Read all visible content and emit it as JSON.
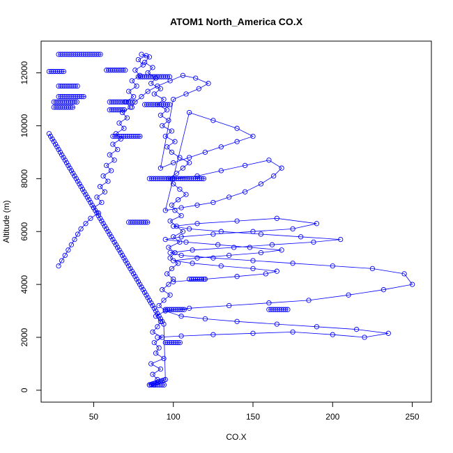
{
  "chart_data": {
    "type": "scatter",
    "title": "ATOM1 North_America CO.X",
    "xlabel": "CO.X",
    "ylabel": "Altitude (m)",
    "xlim": [
      17,
      262
    ],
    "ylim": [
      -450,
      13200
    ],
    "xticks": [
      50,
      100,
      150,
      200,
      250
    ],
    "yticks": [
      0,
      2000,
      4000,
      6000,
      8000,
      10000,
      12000
    ],
    "grid": false,
    "legend": "none",
    "colors": {
      "series": "#0000ff",
      "frame": "#000000",
      "background": "#ffffff"
    },
    "series": [
      {
        "style": "points-and-lines",
        "values_x": [
          88,
          90,
          87,
          92,
          86,
          94,
          89,
          91,
          88,
          93,
          87,
          90,
          92,
          89,
          95,
          91,
          94,
          98,
          93,
          97,
          100,
          96,
          99,
          103,
          98,
          101,
          97,
          104,
          100,
          106,
          102,
          98,
          105,
          101,
          99,
          103,
          108,
          104,
          100,
          97,
          102,
          106,
          110,
          104,
          99,
          96,
          101,
          95,
          99,
          93,
          97,
          92,
          96,
          90,
          94,
          88,
          92,
          86,
          89,
          84,
          87,
          82,
          85,
          80,
          83,
          78,
          81,
          76,
          79,
          74,
          77,
          72,
          75,
          70,
          73,
          68,
          71,
          66,
          69,
          64,
          67,
          62,
          65,
          60,
          63,
          58,
          61,
          56,
          59,
          54,
          57,
          52,
          55,
          50,
          53,
          48,
          45,
          42,
          40,
          38,
          36,
          34,
          32,
          30,
          28
        ],
        "values_y": [
          200,
          400,
          600,
          800,
          1000,
          1200,
          1400,
          1600,
          1800,
          2000,
          2200,
          2400,
          2600,
          2800,
          3000,
          3200,
          3400,
          3600,
          3800,
          4000,
          4200,
          4400,
          4600,
          4800,
          5000,
          5200,
          5400,
          5600,
          5800,
          6000,
          6200,
          6400,
          6600,
          6800,
          7000,
          7200,
          7400,
          7600,
          7800,
          8000,
          8200,
          8400,
          8600,
          8800,
          9000,
          9200,
          9400,
          9600,
          9800,
          10000,
          10200,
          10400,
          10600,
          10800,
          11000,
          11200,
          11400,
          11600,
          11800,
          12000,
          12200,
          12400,
          12600,
          12700,
          12650,
          12500,
          12300,
          12100,
          11900,
          11700,
          11500,
          11300,
          11100,
          10900,
          10700,
          10500,
          10300,
          10100,
          9900,
          9700,
          9500,
          9300,
          9100,
          8900,
          8700,
          8500,
          8300,
          8100,
          7900,
          7700,
          7500,
          7300,
          7100,
          6900,
          6700,
          6500,
          6300,
          6100,
          5900,
          5700,
          5500,
          5300,
          5100,
          4900,
          4700
        ]
      },
      {
        "style": "points-and-lines",
        "values_x": [
          90,
          105,
          125,
          150,
          175,
          200,
          220,
          235,
          215,
          190,
          165,
          140,
          120,
          105,
          95,
          110,
          135,
          160,
          185,
          210,
          232,
          250,
          245,
          225,
          200,
          175,
          150,
          125,
          105,
          98,
          112,
          138,
          162,
          188,
          205,
          180,
          155,
          130,
          110,
          100,
          115,
          140,
          165,
          190,
          175,
          150,
          125,
          105,
          95,
          108,
          128,
          148,
          168,
          155,
          135,
          115,
          100,
          112,
          130,
          150,
          165,
          158,
          140,
          120,
          100
        ],
        "values_y": [
          2000,
          2050,
          2100,
          2150,
          2200,
          2100,
          2000,
          2150,
          2300,
          2400,
          2500,
          2600,
          2700,
          2800,
          3000,
          3100,
          3200,
          3300,
          3400,
          3600,
          3800,
          4000,
          4400,
          4600,
          4700,
          4800,
          4900,
          5000,
          5100,
          5200,
          5300,
          5400,
          5500,
          5600,
          5700,
          5800,
          5900,
          6000,
          6100,
          6200,
          6300,
          6400,
          6500,
          6300,
          6100,
          6000,
          5900,
          5800,
          5700,
          5600,
          5500,
          5400,
          5300,
          5200,
          5100,
          5000,
          4900,
          4800,
          4700,
          4600,
          4500,
          4400,
          4300,
          4200,
          4100
        ]
      },
      {
        "style": "points-and-lines",
        "values_x": [
          100,
          115,
          130,
          145,
          160,
          168,
          163,
          155,
          145,
          135,
          125,
          115,
          105,
          95,
          110,
          125,
          140,
          150,
          140,
          130,
          120,
          110,
          100,
          92,
          100,
          108,
          116,
          122,
          114,
          106,
          98,
          90,
          84,
          80,
          76,
          74
        ],
        "values_y": [
          8000,
          8100,
          8300,
          8500,
          8700,
          8400,
          8100,
          7800,
          7500,
          7300,
          7100,
          7000,
          6900,
          6800,
          10500,
          10200,
          9900,
          9600,
          9400,
          9200,
          9000,
          8800,
          8600,
          8400,
          11000,
          11200,
          11400,
          11600,
          11800,
          11900,
          11700,
          11500,
          11300,
          11100,
          10900,
          10700
        ]
      },
      {
        "style": "points-and-lines",
        "values_x": [
          85,
          86,
          87,
          88,
          89,
          90,
          91,
          92,
          93,
          94,
          95,
          94,
          93,
          92,
          91,
          90,
          89,
          88,
          87,
          86,
          85,
          84,
          83,
          82,
          81,
          80,
          79,
          78,
          77,
          76,
          75,
          74,
          73,
          72,
          71,
          70,
          69,
          68,
          67,
          66,
          65,
          64,
          63,
          62,
          61,
          60,
          59,
          58,
          57,
          56,
          55,
          54,
          53,
          52,
          51,
          50,
          49,
          48,
          47,
          46,
          45,
          44,
          43,
          42,
          41,
          40,
          39,
          38,
          37,
          36,
          35,
          34,
          33,
          32,
          31,
          30,
          29,
          28,
          27,
          26,
          25,
          24,
          23,
          22
        ],
        "values_y": [
          200,
          220,
          240,
          260,
          280,
          300,
          320,
          340,
          360,
          380,
          400,
          2500,
          2600,
          2700,
          2800,
          2900,
          3000,
          3100,
          3200,
          3300,
          3400,
          3500,
          3600,
          3700,
          3800,
          3900,
          4000,
          4100,
          4200,
          4300,
          4400,
          4500,
          4600,
          4700,
          4800,
          4900,
          5000,
          5100,
          5200,
          5300,
          5400,
          5500,
          5600,
          5700,
          5800,
          5900,
          6000,
          6100,
          6200,
          6300,
          6400,
          6500,
          6600,
          6700,
          6800,
          6900,
          7000,
          7100,
          7200,
          7300,
          7400,
          7500,
          7600,
          7700,
          7800,
          7900,
          8000,
          8100,
          8200,
          8300,
          8400,
          8500,
          8600,
          8700,
          8800,
          8900,
          9000,
          9100,
          9200,
          9300,
          9400,
          9500,
          9600,
          9700
        ]
      }
    ],
    "flat_segments": [
      {
        "x": [
          28,
          55
        ],
        "y": 12700
      },
      {
        "x": [
          58,
          70
        ],
        "y": 12100
      },
      {
        "x": [
          22,
          32
        ],
        "y": 12050
      },
      {
        "x": [
          28,
          40
        ],
        "y": 11500
      },
      {
        "x": [
          28,
          45
        ],
        "y": 11100
      },
      {
        "x": [
          25,
          40
        ],
        "y": 10900
      },
      {
        "x": [
          25,
          38
        ],
        "y": 10700
      },
      {
        "x": [
          60,
          75
        ],
        "y": 10900
      },
      {
        "x": [
          60,
          70
        ],
        "y": 10600
      },
      {
        "x": [
          78,
          98
        ],
        "y": 11850
      },
      {
        "x": [
          82,
          98
        ],
        "y": 10800
      },
      {
        "x": [
          62,
          80
        ],
        "y": 9600
      },
      {
        "x": [
          85,
          120
        ],
        "y": 8000
      },
      {
        "x": [
          72,
          85
        ],
        "y": 6350
      },
      {
        "x": [
          95,
          108
        ],
        "y": 3050
      },
      {
        "x": [
          160,
          172
        ],
        "y": 3050
      },
      {
        "x": [
          110,
          120
        ],
        "y": 4200
      },
      {
        "x": [
          95,
          105
        ],
        "y": 1800
      },
      {
        "x": [
          85,
          95
        ],
        "y": 200
      }
    ]
  }
}
